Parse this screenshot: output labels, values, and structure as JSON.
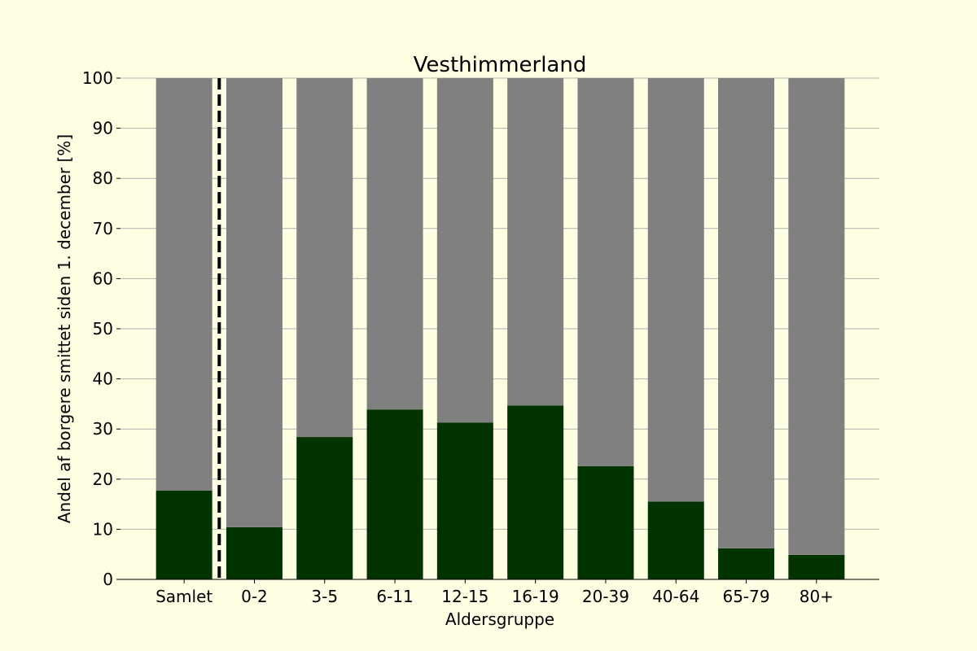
{
  "chart_data": {
    "type": "bar",
    "title": "Vesthimmerland",
    "xlabel": "Aldersgruppe",
    "ylabel": "Andel af borgere smittet siden 1. december [%]",
    "ylim": [
      0,
      100
    ],
    "yticks": [
      0,
      10,
      20,
      30,
      40,
      50,
      60,
      70,
      80,
      90,
      100
    ],
    "grid": "horizontal",
    "categories": [
      "Samlet",
      "0-2",
      "3-5",
      "6-11",
      "12-15",
      "16-19",
      "20-39",
      "40-64",
      "65-79",
      "80+"
    ],
    "series": [
      {
        "values": [
          17.7,
          10.4,
          28.4,
          33.9,
          31.3,
          34.7,
          22.6,
          15.5,
          6.2,
          4.9
        ],
        "color": "#003300"
      },
      {
        "values": [
          82.3,
          89.6,
          71.6,
          66.1,
          68.7,
          65.3,
          77.4,
          84.5,
          93.8,
          95.1
        ],
        "color": "#808080"
      }
    ],
    "separator": {
      "after_category": "Samlet",
      "style": "dashed",
      "color": "#000000"
    },
    "colors": {
      "background": "#ffffe3",
      "grid": "#b0b0b0"
    }
  }
}
